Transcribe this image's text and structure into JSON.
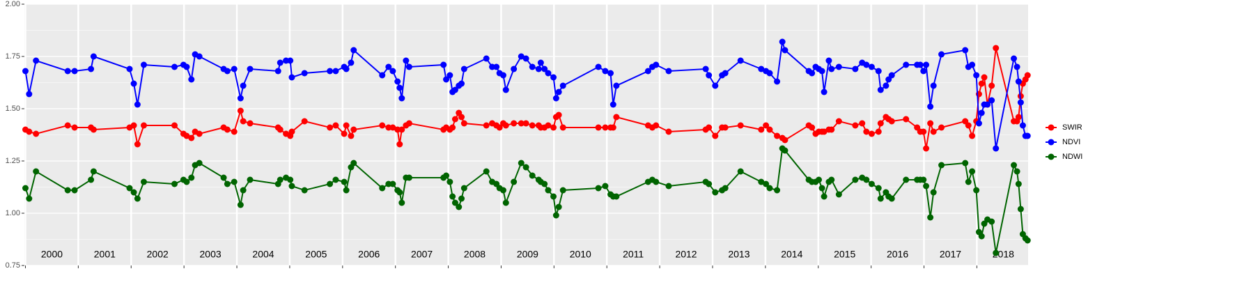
{
  "chart_data": {
    "type": "line",
    "x": [
      2000.0,
      2000.07,
      2000.2,
      2000.8,
      2000.93,
      2001.24,
      2001.29,
      2001.97,
      2002.05,
      2002.12,
      2002.24,
      2002.82,
      2002.99,
      2003.05,
      2003.14,
      2003.21,
      2003.29,
      2003.75,
      2003.82,
      2003.95,
      2004.07,
      2004.12,
      2004.25,
      2004.78,
      2004.82,
      2004.93,
      2005.01,
      2005.04,
      2005.28,
      2005.76,
      2005.87,
      2006.03,
      2006.07,
      2006.16,
      2006.21,
      2006.75,
      2006.87,
      2006.95,
      2007.04,
      2007.08,
      2007.12,
      2007.2,
      2007.26,
      2007.91,
      2007.96,
      2008.03,
      2008.08,
      2008.13,
      2008.2,
      2008.25,
      2008.3,
      2008.72,
      2008.83,
      2008.91,
      2008.97,
      2009.04,
      2009.09,
      2009.24,
      2009.38,
      2009.47,
      2009.59,
      2009.71,
      2009.75,
      2009.82,
      2009.89,
      2009.99,
      2010.04,
      2010.09,
      2010.17,
      2010.84,
      2010.97,
      2011.07,
      2011.12,
      2011.18,
      2011.78,
      2011.86,
      2011.93,
      2012.17,
      2012.87,
      2012.93,
      2013.05,
      2013.18,
      2013.24,
      2013.53,
      2013.92,
      2014.01,
      2014.08,
      2014.22,
      2014.32,
      2014.37,
      2014.82,
      2014.88,
      2014.95,
      2015.01,
      2015.07,
      2015.11,
      2015.2,
      2015.25,
      2015.39,
      2015.7,
      2015.83,
      2015.91,
      2016.01,
      2016.14,
      2016.18,
      2016.28,
      2016.33,
      2016.39,
      2016.66,
      2016.87,
      2016.93,
      2016.99,
      2017.04,
      2017.12,
      2017.18,
      2017.33,
      2017.78,
      2017.84,
      2017.91,
      2017.99,
      2018.04,
      2018.09,
      2018.14,
      2018.2,
      2018.28,
      2018.36,
      2018.7,
      2018.76,
      2018.79,
      2018.83,
      2018.87,
      2018.92,
      2018.96
    ],
    "series": [
      {
        "name": "SWIR",
        "color": "#ff0000",
        "values": [
          1.4,
          1.39,
          1.38,
          1.42,
          1.41,
          1.41,
          1.4,
          1.41,
          1.42,
          1.33,
          1.42,
          1.42,
          1.38,
          1.37,
          1.36,
          1.39,
          1.38,
          1.41,
          1.4,
          1.39,
          1.49,
          1.44,
          1.43,
          1.41,
          1.4,
          1.38,
          1.37,
          1.39,
          1.44,
          1.41,
          1.42,
          1.38,
          1.42,
          1.37,
          1.4,
          1.42,
          1.41,
          1.41,
          1.4,
          1.33,
          1.4,
          1.42,
          1.43,
          1.4,
          1.41,
          1.4,
          1.41,
          1.45,
          1.48,
          1.46,
          1.43,
          1.42,
          1.43,
          1.42,
          1.41,
          1.43,
          1.42,
          1.43,
          1.43,
          1.43,
          1.42,
          1.42,
          1.41,
          1.41,
          1.42,
          1.41,
          1.46,
          1.47,
          1.41,
          1.41,
          1.41,
          1.41,
          1.41,
          1.46,
          1.42,
          1.41,
          1.42,
          1.39,
          1.4,
          1.41,
          1.37,
          1.41,
          1.41,
          1.42,
          1.4,
          1.42,
          1.4,
          1.37,
          1.36,
          1.35,
          1.42,
          1.41,
          1.38,
          1.39,
          1.39,
          1.39,
          1.4,
          1.4,
          1.44,
          1.42,
          1.43,
          1.39,
          1.38,
          1.39,
          1.43,
          1.46,
          1.45,
          1.44,
          1.45,
          1.41,
          1.39,
          1.39,
          1.31,
          1.43,
          1.39,
          1.41,
          1.44,
          1.42,
          1.37,
          1.44,
          1.57,
          1.62,
          1.65,
          1.52,
          1.61,
          1.79,
          1.44,
          1.44,
          1.46,
          1.56,
          1.62,
          1.64,
          1.66
        ]
      },
      {
        "name": "NDVI",
        "color": "#0000ff",
        "values": [
          1.68,
          1.57,
          1.73,
          1.68,
          1.68,
          1.69,
          1.75,
          1.69,
          1.62,
          1.52,
          1.71,
          1.7,
          1.71,
          1.7,
          1.64,
          1.76,
          1.75,
          1.69,
          1.68,
          1.69,
          1.55,
          1.61,
          1.69,
          1.68,
          1.72,
          1.73,
          1.73,
          1.65,
          1.67,
          1.68,
          1.68,
          1.7,
          1.69,
          1.72,
          1.78,
          1.66,
          1.7,
          1.68,
          1.63,
          1.6,
          1.55,
          1.73,
          1.7,
          1.71,
          1.64,
          1.66,
          1.58,
          1.59,
          1.61,
          1.62,
          1.69,
          1.74,
          1.7,
          1.7,
          1.67,
          1.66,
          1.59,
          1.69,
          1.75,
          1.74,
          1.7,
          1.69,
          1.72,
          1.69,
          1.67,
          1.65,
          1.55,
          1.58,
          1.61,
          1.7,
          1.68,
          1.67,
          1.52,
          1.61,
          1.68,
          1.7,
          1.71,
          1.68,
          1.69,
          1.66,
          1.61,
          1.66,
          1.67,
          1.73,
          1.69,
          1.68,
          1.67,
          1.63,
          1.82,
          1.78,
          1.68,
          1.67,
          1.7,
          1.69,
          1.68,
          1.58,
          1.73,
          1.69,
          1.7,
          1.69,
          1.72,
          1.71,
          1.7,
          1.68,
          1.59,
          1.61,
          1.64,
          1.66,
          1.71,
          1.71,
          1.71,
          1.68,
          1.71,
          1.51,
          1.61,
          1.76,
          1.78,
          1.7,
          1.71,
          1.66,
          1.43,
          1.48,
          1.52,
          1.52,
          1.54,
          1.31,
          1.74,
          1.7,
          1.63,
          1.53,
          1.42,
          1.37,
          1.37
        ]
      },
      {
        "name": "NDWI",
        "color": "#006400",
        "values": [
          1.12,
          1.07,
          1.2,
          1.11,
          1.11,
          1.16,
          1.2,
          1.12,
          1.1,
          1.07,
          1.15,
          1.14,
          1.16,
          1.15,
          1.17,
          1.23,
          1.24,
          1.17,
          1.14,
          1.15,
          1.04,
          1.11,
          1.16,
          1.14,
          1.16,
          1.17,
          1.16,
          1.13,
          1.11,
          1.14,
          1.16,
          1.15,
          1.11,
          1.22,
          1.24,
          1.12,
          1.14,
          1.14,
          1.11,
          1.1,
          1.05,
          1.17,
          1.17,
          1.17,
          1.18,
          1.15,
          1.08,
          1.05,
          1.03,
          1.07,
          1.12,
          1.2,
          1.15,
          1.14,
          1.12,
          1.11,
          1.05,
          1.15,
          1.24,
          1.22,
          1.18,
          1.16,
          1.15,
          1.14,
          1.11,
          1.08,
          0.99,
          1.03,
          1.11,
          1.12,
          1.13,
          1.09,
          1.08,
          1.08,
          1.15,
          1.16,
          1.15,
          1.13,
          1.15,
          1.14,
          1.1,
          1.11,
          1.12,
          1.2,
          1.15,
          1.14,
          1.12,
          1.11,
          1.31,
          1.3,
          1.16,
          1.15,
          1.15,
          1.16,
          1.12,
          1.08,
          1.15,
          1.16,
          1.09,
          1.16,
          1.17,
          1.16,
          1.14,
          1.12,
          1.07,
          1.1,
          1.08,
          1.07,
          1.16,
          1.16,
          1.16,
          1.16,
          1.13,
          0.98,
          1.1,
          1.23,
          1.24,
          1.15,
          1.2,
          1.11,
          0.91,
          0.89,
          0.95,
          0.97,
          0.96,
          0.81,
          1.23,
          1.2,
          1.14,
          1.02,
          0.9,
          0.88,
          0.87
        ]
      }
    ],
    "years": [
      2000,
      2001,
      2002,
      2003,
      2004,
      2005,
      2006,
      2007,
      2008,
      2009,
      2010,
      2011,
      2012,
      2013,
      2014,
      2015,
      2016,
      2017,
      2018
    ],
    "xlim": [
      1999.98,
      2018.97
    ],
    "ylim": [
      0.75,
      2.0
    ],
    "yticks": [
      0.75,
      {
        "value": 1.0,
        "label": "1.00"
      },
      1.25,
      {
        "value": 1.5,
        "label": "1.50"
      },
      1.75,
      {
        "value": 2.0,
        "label": "2.00"
      }
    ],
    "y_minor_ticks": [
      0.875,
      1.125,
      1.375,
      1.625,
      1.875
    ],
    "grid": true,
    "legend": "right"
  }
}
